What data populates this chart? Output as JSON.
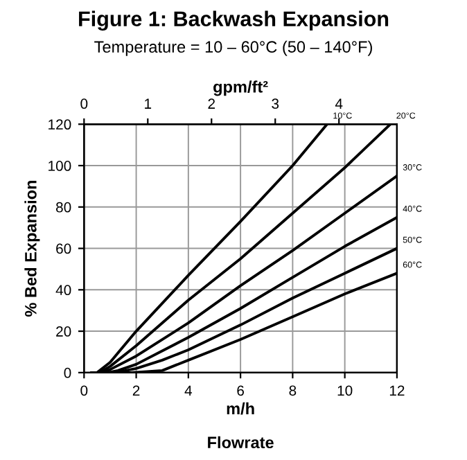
{
  "chart_data": {
    "type": "line",
    "title": "Figure 1: Backwash Expansion",
    "subtitle": "Temperature = 10 – 60°C (50 – 140°F)",
    "xlabel": "m/h",
    "ylabel": "% Bed Expansion",
    "x2label": "gpm/ft²",
    "annotations": [
      "Flowrate"
    ],
    "xlim": [
      0,
      12
    ],
    "xticks": [
      0,
      2,
      4,
      6,
      8,
      10,
      12
    ],
    "ylim": [
      0,
      120
    ],
    "yticks": [
      0,
      20,
      40,
      60,
      80,
      100,
      120
    ],
    "x2lim": [
      0,
      4.91
    ],
    "x2ticks": [
      0,
      1,
      2,
      3,
      4
    ],
    "grid": true,
    "legend": false,
    "marker": "none",
    "line_style": "solid",
    "series": [
      {
        "name": "10°C",
        "color": "#000000",
        "x": [
          0.3,
          0.5,
          1,
          2,
          4,
          6,
          8,
          9.32
        ],
        "values": [
          0,
          0,
          5,
          20,
          47,
          73,
          100,
          120
        ]
      },
      {
        "name": "20°C",
        "color": "#000000",
        "x": [
          0.3,
          0.6,
          1,
          2,
          4,
          6,
          8,
          10,
          11.75
        ],
        "values": [
          0,
          0,
          3,
          13,
          35,
          55,
          77,
          99,
          120
        ]
      },
      {
        "name": "30°C",
        "color": "#000000",
        "x": [
          0.3,
          0.7,
          1,
          2,
          4,
          6,
          8,
          10,
          12
        ],
        "values": [
          0,
          0,
          1.5,
          8,
          24,
          42,
          59,
          77,
          95
        ]
      },
      {
        "name": "40°C",
        "color": "#000000",
        "x": [
          0.3,
          0.9,
          1.3,
          2,
          4,
          6,
          8,
          10,
          12
        ],
        "values": [
          0,
          0,
          1,
          4,
          17,
          31,
          46,
          61,
          75
        ]
      },
      {
        "name": "50°C",
        "color": "#000000",
        "x": [
          0.3,
          1.2,
          2,
          3,
          4,
          6,
          8,
          10,
          12
        ],
        "values": [
          0,
          0,
          2,
          6,
          11,
          23,
          36,
          48,
          60
        ]
      },
      {
        "name": "60°C",
        "color": "#000000",
        "x": [
          0.3,
          1.8,
          3,
          4,
          6,
          8,
          10,
          12
        ],
        "values": [
          0,
          0,
          1,
          6,
          16,
          27,
          38,
          48
        ]
      }
    ]
  }
}
